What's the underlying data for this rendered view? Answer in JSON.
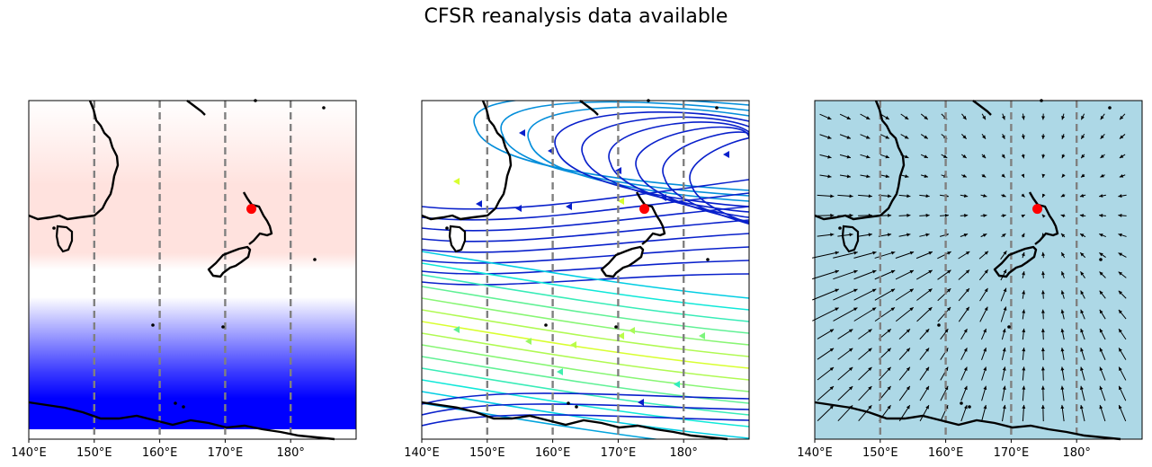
{
  "title": "CFSR reanalysis data available",
  "marker_color": "#ff0000",
  "grid_color": "#808080",
  "coastline_color": "#000000",
  "panels": [
    {
      "id": "temperature",
      "kind": "shaded",
      "colors": {
        "warm": "#ffe2de",
        "mid": "#ffffff",
        "cold": "#0000ff",
        "ice": "#ffffff"
      }
    },
    {
      "id": "streamlines",
      "kind": "streamlines",
      "colors": {
        "slow": "#0a0ac8",
        "mid": "#00e6e6",
        "fast": "#d8ff30",
        "background": "#ffffff"
      }
    },
    {
      "id": "wind-vectors",
      "kind": "quiver",
      "colors": {
        "background": "#add8e6",
        "arrow": "#000000"
      }
    }
  ],
  "map_extent": {
    "lon": [
      140,
      190
    ],
    "lat": [
      -75,
      -25
    ]
  },
  "marker": {
    "lon": 174,
    "lat": -41
  },
  "gridlines_lon": [
    150,
    160,
    170,
    180
  ],
  "tick_labels": [
    {
      "lon": 140,
      "label": "140°E"
    },
    {
      "lon": 150,
      "label": "150°E"
    },
    {
      "lon": 160,
      "label": "160°E"
    },
    {
      "lon": 170,
      "label": "170°E"
    },
    {
      "lon": 180,
      "label": "180°"
    }
  ]
}
